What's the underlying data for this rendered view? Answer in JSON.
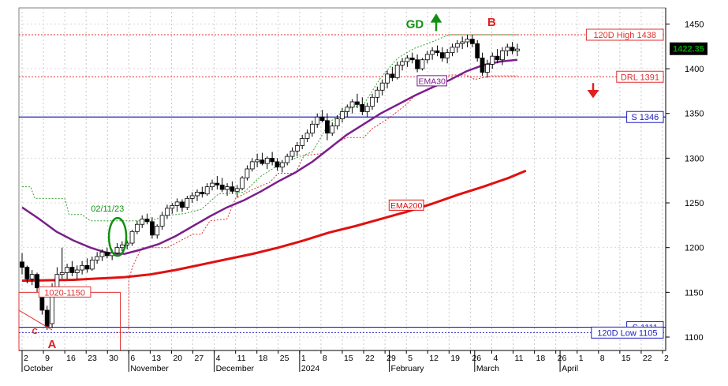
{
  "chart_data": {
    "type": "candlestick",
    "title": "",
    "y_axis": {
      "position": "right",
      "range": [
        1085,
        1468
      ],
      "ticks": [
        1100,
        1150,
        1200,
        1250,
        1300,
        1350,
        1400,
        1450
      ],
      "tick_labels": [
        "1100",
        "1150",
        "1200",
        "1250",
        "1300",
        "1350",
        "1400",
        "1450"
      ],
      "current_price": "1422.35",
      "current_value": 1422.35,
      "current_color": "#00a000"
    },
    "x_axis": {
      "day_ticks": [
        "2",
        "9",
        "16",
        "23",
        "30",
        "6",
        "13",
        "20",
        "27",
        "4",
        "11",
        "18",
        "25",
        "1",
        "8",
        "15",
        "22",
        "29",
        "5",
        "12",
        "19",
        "26",
        "4",
        "11",
        "18",
        "26",
        "1",
        "8",
        "15",
        "22",
        "2"
      ],
      "month_labels": [
        "October",
        "November",
        "December",
        "2024",
        "February",
        "March",
        "April"
      ],
      "tick_index_positions": [
        0,
        5,
        10,
        15,
        20,
        25,
        30,
        35,
        40,
        45,
        50,
        55,
        60,
        65,
        70,
        75,
        80,
        85,
        90,
        95,
        100,
        105,
        110,
        115,
        120,
        125,
        130,
        135,
        140,
        145,
        150
      ],
      "month_index_positions": [
        0,
        25,
        45,
        65,
        86,
        106,
        126
      ]
    },
    "horizontal_levels": [
      {
        "label": "120D High 1438",
        "value": 1438,
        "color": "#e03030",
        "style": "dotted"
      },
      {
        "label": "DRL 1391",
        "value": 1391,
        "color": "#e03030",
        "style": "dotted"
      },
      {
        "label": "S 1346",
        "value": 1346,
        "color": "#2020c0",
        "style": "solid"
      },
      {
        "label": "S 1111",
        "value": 1111,
        "color": "#2020c0",
        "style": "solid"
      },
      {
        "label": "120D Low 1105",
        "value": 1105,
        "color": "#2020c0",
        "style": "dotted"
      }
    ],
    "series": [
      {
        "name": "EMA30",
        "color": "#7a1f8a",
        "label_anchor_index": 95,
        "points": [
          [
            0,
            1245
          ],
          [
            4,
            1232
          ],
          [
            8,
            1218
          ],
          [
            12,
            1208
          ],
          [
            16,
            1200
          ],
          [
            20,
            1194
          ],
          [
            24,
            1193
          ],
          [
            28,
            1198
          ],
          [
            32,
            1204
          ],
          [
            36,
            1213
          ],
          [
            40,
            1224
          ],
          [
            44,
            1235
          ],
          [
            48,
            1245
          ],
          [
            52,
            1253
          ],
          [
            56,
            1263
          ],
          [
            60,
            1274
          ],
          [
            64,
            1284
          ],
          [
            68,
            1296
          ],
          [
            72,
            1311
          ],
          [
            76,
            1326
          ],
          [
            80,
            1338
          ],
          [
            84,
            1350
          ],
          [
            88,
            1360
          ],
          [
            92,
            1370
          ],
          [
            96,
            1379
          ],
          [
            100,
            1387
          ],
          [
            104,
            1397
          ],
          [
            108,
            1404
          ],
          [
            112,
            1408
          ],
          [
            116,
            1410
          ]
        ]
      },
      {
        "name": "EMA200",
        "color": "#e01010",
        "label_anchor_index": 92,
        "points": [
          [
            0,
            1163
          ],
          [
            12,
            1164
          ],
          [
            24,
            1167
          ],
          [
            30,
            1170
          ],
          [
            36,
            1175
          ],
          [
            42,
            1181
          ],
          [
            48,
            1187
          ],
          [
            54,
            1193
          ],
          [
            60,
            1200
          ],
          [
            66,
            1208
          ],
          [
            72,
            1217
          ],
          [
            78,
            1224
          ],
          [
            84,
            1232
          ],
          [
            90,
            1240
          ],
          [
            96,
            1249
          ],
          [
            102,
            1259
          ],
          [
            108,
            1268
          ],
          [
            114,
            1278
          ],
          [
            118,
            1286
          ]
        ]
      }
    ],
    "trailing_stop": {
      "color": "#e03030",
      "points": [
        [
          22,
          1105
        ],
        [
          25,
          1105
        ],
        [
          25,
          1165
        ],
        [
          26,
          1180
        ],
        [
          28,
          1200
        ],
        [
          30,
          1200
        ],
        [
          34,
          1200
        ],
        [
          40,
          1215
        ],
        [
          42,
          1215
        ],
        [
          44,
          1230
        ],
        [
          48,
          1232
        ],
        [
          50,
          1255
        ],
        [
          54,
          1265
        ],
        [
          58,
          1273
        ],
        [
          60,
          1283
        ],
        [
          64,
          1283
        ],
        [
          66,
          1303
        ],
        [
          70,
          1305
        ],
        [
          74,
          1318
        ],
        [
          76,
          1323
        ],
        [
          80,
          1323
        ],
        [
          82,
          1333
        ],
        [
          86,
          1345
        ],
        [
          90,
          1360
        ],
        [
          92,
          1370
        ],
        [
          96,
          1378
        ],
        [
          100,
          1393
        ],
        [
          104,
          1393
        ],
        [
          106,
          1388
        ],
        [
          110,
          1392
        ],
        [
          116,
          1392
        ]
      ]
    },
    "upper_channel": {
      "color": "#30a030",
      "points": [
        [
          0,
          1268
        ],
        [
          2,
          1268
        ],
        [
          3,
          1255
        ],
        [
          10,
          1255
        ],
        [
          11,
          1237
        ],
        [
          14,
          1237
        ],
        [
          16,
          1230
        ],
        [
          30,
          1230
        ],
        [
          34,
          1236
        ],
        [
          38,
          1238
        ],
        [
          42,
          1243
        ],
        [
          46,
          1260
        ],
        [
          52,
          1262
        ],
        [
          56,
          1280
        ],
        [
          60,
          1292
        ],
        [
          64,
          1300
        ],
        [
          68,
          1307
        ],
        [
          72,
          1340
        ],
        [
          76,
          1355
        ],
        [
          80,
          1360
        ],
        [
          84,
          1390
        ],
        [
          88,
          1412
        ],
        [
          92,
          1423
        ],
        [
          96,
          1430
        ],
        [
          100,
          1438
        ],
        [
          116,
          1438
        ]
      ]
    },
    "candles_ohlc": [
      [
        1184,
        1194,
        1170,
        1178
      ],
      [
        1178,
        1180,
        1160,
        1165
      ],
      [
        1165,
        1175,
        1158,
        1170
      ],
      [
        1170,
        1172,
        1150,
        1155
      ],
      [
        1150,
        1152,
        1125,
        1130
      ],
      [
        1130,
        1135,
        1108,
        1112
      ],
      [
        1115,
        1160,
        1110,
        1155
      ],
      [
        1155,
        1178,
        1152,
        1170
      ],
      [
        1170,
        1200,
        1165,
        1172
      ],
      [
        1172,
        1182,
        1165,
        1178
      ],
      [
        1178,
        1185,
        1168,
        1172
      ],
      [
        1172,
        1180,
        1165,
        1175
      ],
      [
        1175,
        1185,
        1170,
        1180
      ],
      [
        1180,
        1188,
        1172,
        1176
      ],
      [
        1176,
        1190,
        1174,
        1186
      ],
      [
        1186,
        1195,
        1182,
        1190
      ],
      [
        1190,
        1198,
        1185,
        1195
      ],
      [
        1195,
        1200,
        1188,
        1191
      ],
      [
        1191,
        1198,
        1186,
        1194
      ],
      [
        1194,
        1205,
        1190,
        1200
      ],
      [
        1200,
        1207,
        1196,
        1203
      ],
      [
        1203,
        1208,
        1198,
        1205
      ],
      [
        1205,
        1220,
        1202,
        1218
      ],
      [
        1218,
        1230,
        1215,
        1226
      ],
      [
        1226,
        1236,
        1222,
        1232
      ],
      [
        1232,
        1238,
        1226,
        1229
      ],
      [
        1229,
        1234,
        1210,
        1214
      ],
      [
        1214,
        1226,
        1210,
        1224
      ],
      [
        1224,
        1240,
        1220,
        1236
      ],
      [
        1236,
        1248,
        1232,
        1244
      ],
      [
        1244,
        1250,
        1238,
        1247
      ],
      [
        1247,
        1255,
        1240,
        1251
      ],
      [
        1251,
        1254,
        1240,
        1245
      ],
      [
        1245,
        1258,
        1242,
        1255
      ],
      [
        1255,
        1262,
        1250,
        1258
      ],
      [
        1258,
        1265,
        1252,
        1262
      ],
      [
        1262,
        1268,
        1256,
        1260
      ],
      [
        1260,
        1272,
        1258,
        1268
      ],
      [
        1268,
        1276,
        1264,
        1272
      ],
      [
        1272,
        1280,
        1265,
        1270
      ],
      [
        1270,
        1278,
        1262,
        1265
      ],
      [
        1265,
        1272,
        1258,
        1268
      ],
      [
        1268,
        1274,
        1260,
        1263
      ],
      [
        1263,
        1270,
        1256,
        1266
      ],
      [
        1266,
        1280,
        1264,
        1278
      ],
      [
        1278,
        1292,
        1275,
        1288
      ],
      [
        1288,
        1300,
        1285,
        1296
      ],
      [
        1296,
        1305,
        1290,
        1298
      ],
      [
        1298,
        1306,
        1292,
        1294
      ],
      [
        1294,
        1302,
        1288,
        1300
      ],
      [
        1300,
        1307,
        1292,
        1296
      ],
      [
        1296,
        1300,
        1286,
        1290
      ],
      [
        1290,
        1298,
        1284,
        1295
      ],
      [
        1295,
        1305,
        1292,
        1302
      ],
      [
        1302,
        1312,
        1298,
        1308
      ],
      [
        1308,
        1318,
        1302,
        1314
      ],
      [
        1314,
        1326,
        1310,
        1322
      ],
      [
        1322,
        1332,
        1318,
        1328
      ],
      [
        1328,
        1342,
        1324,
        1338
      ],
      [
        1338,
        1350,
        1334,
        1346
      ],
      [
        1346,
        1354,
        1340,
        1342
      ],
      [
        1342,
        1350,
        1320,
        1328
      ],
      [
        1328,
        1340,
        1325,
        1336
      ],
      [
        1336,
        1348,
        1332,
        1344
      ],
      [
        1344,
        1356,
        1340,
        1352
      ],
      [
        1352,
        1360,
        1346,
        1357
      ],
      [
        1357,
        1366,
        1350,
        1363
      ],
      [
        1363,
        1372,
        1356,
        1360
      ],
      [
        1360,
        1368,
        1348,
        1352
      ],
      [
        1352,
        1362,
        1346,
        1358
      ],
      [
        1358,
        1372,
        1354,
        1368
      ],
      [
        1368,
        1380,
        1362,
        1376
      ],
      [
        1376,
        1388,
        1370,
        1384
      ],
      [
        1384,
        1398,
        1378,
        1394
      ],
      [
        1394,
        1402,
        1386,
        1390
      ],
      [
        1390,
        1408,
        1388,
        1404
      ],
      [
        1404,
        1412,
        1398,
        1408
      ],
      [
        1408,
        1415,
        1402,
        1412
      ],
      [
        1412,
        1418,
        1406,
        1410
      ],
      [
        1410,
        1416,
        1396,
        1400
      ],
      [
        1400,
        1412,
        1398,
        1410
      ],
      [
        1410,
        1420,
        1406,
        1416
      ],
      [
        1416,
        1424,
        1410,
        1420
      ],
      [
        1420,
        1426,
        1414,
        1418
      ],
      [
        1418,
        1424,
        1408,
        1412
      ],
      [
        1412,
        1422,
        1406,
        1418
      ],
      [
        1418,
        1428,
        1414,
        1424
      ],
      [
        1424,
        1432,
        1418,
        1428
      ],
      [
        1428,
        1436,
        1422,
        1430
      ],
      [
        1430,
        1438,
        1424,
        1433
      ],
      [
        1433,
        1438,
        1424,
        1428
      ],
      [
        1428,
        1432,
        1408,
        1412
      ],
      [
        1412,
        1418,
        1392,
        1396
      ],
      [
        1396,
        1410,
        1390,
        1405
      ],
      [
        1405,
        1418,
        1400,
        1414
      ],
      [
        1414,
        1422,
        1406,
        1410
      ],
      [
        1410,
        1424,
        1404,
        1420
      ],
      [
        1420,
        1428,
        1414,
        1424
      ],
      [
        1424,
        1430,
        1416,
        1420
      ],
      [
        1420,
        1428,
        1414,
        1422
      ]
    ],
    "candles_first_index": 0,
    "candles_comment_free": true,
    "annotations": [
      {
        "text": "GD",
        "color": "#109010",
        "x_index": 92,
        "value": 1450
      },
      {
        "text": "B",
        "color": "#e02020",
        "x_index": 110,
        "value": 1452
      },
      {
        "text": "A",
        "color": "#e02020",
        "x_index": 7,
        "value": 1092
      },
      {
        "text": "C",
        "color": "#e02020",
        "x_index": 3,
        "value": 1108
      },
      {
        "text": "02/11/23",
        "color": "#109010",
        "x_index": 20,
        "value": 1244
      },
      {
        "text": "1020-1150",
        "color": "#e03030",
        "x_index": 10,
        "value": 1150
      }
    ]
  }
}
